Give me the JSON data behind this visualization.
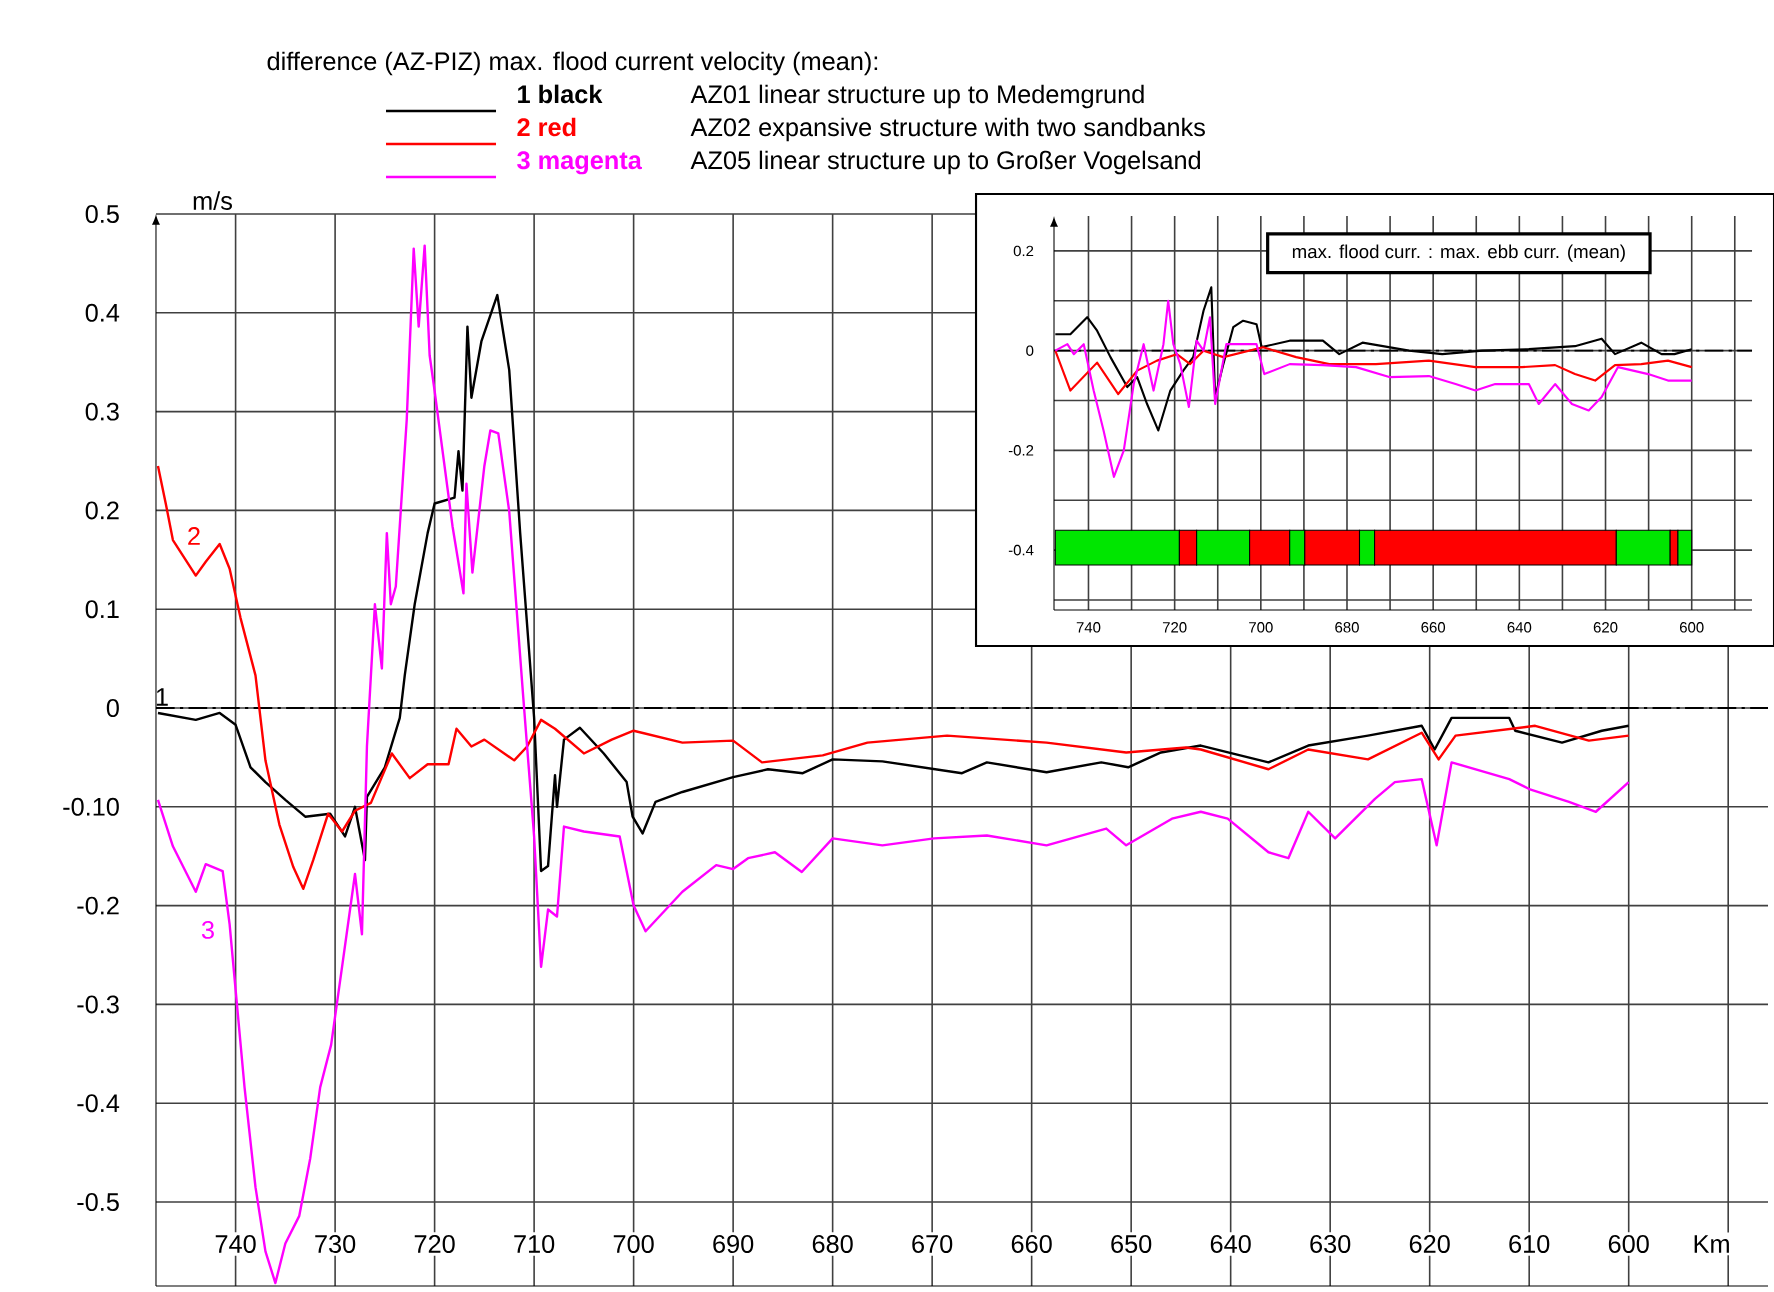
{
  "chart_data": [
    {
      "type": "line",
      "legend_title": "difference (AZ-PIZ) max. flood current velocity (mean):",
      "xlabel": "Km",
      "ylabel": "m/s",
      "xlim": [
        748,
        586
      ],
      "ylim": [
        -0.585,
        0.5
      ],
      "xticks": [
        740,
        730,
        720,
        710,
        700,
        690,
        680,
        670,
        660,
        650,
        640,
        630,
        620,
        610,
        600,
        {
          "value": 590,
          "label": null
        }
      ],
      "yticks": [
        0.5,
        0.4,
        0.3,
        0.2,
        0.1,
        0,
        {
          "value": -0.1,
          "label": "-0.10"
        },
        -0.2,
        -0.3,
        -0.4,
        -0.5
      ],
      "grid": true,
      "legend": "top",
      "ref_lines": [
        {
          "axis": "y",
          "value": 0,
          "line_style": "dashdot",
          "color": "#000000"
        }
      ],
      "annotations": [
        "1",
        "2",
        "3",
        "AZ01 linear structure up to Medemgrund",
        "AZ02 expansive structure with two sandbanks",
        "AZ05 linear structure up to Großer Vogelsand"
      ],
      "series": [
        {
          "name": "1 black",
          "color": "#000000",
          "x": [
            747.8,
            744,
            741.6,
            740,
            738.5,
            737,
            735,
            733,
            730.5,
            729,
            728,
            727,
            726.8,
            725,
            723.5,
            723,
            722,
            720.7,
            720,
            718,
            717.6,
            717.2,
            716.7,
            716.3,
            715.3,
            713.7,
            712.5,
            711.4,
            710,
            709.3,
            708.6,
            707.9,
            707.7,
            707,
            705.4,
            703,
            700.7,
            700.1,
            699.1,
            697.8,
            695.1,
            690,
            686.5,
            683,
            680,
            675,
            667,
            664.5,
            658.5,
            653,
            650.3,
            647,
            643,
            636.2,
            632.2,
            626.2,
            620.8,
            619.5,
            617.8,
            612,
            611.4,
            606.7,
            602.7,
            600
          ],
          "values": [
            -0.005,
            -0.012,
            -0.005,
            -0.017,
            -0.06,
            -0.075,
            -0.093,
            -0.11,
            -0.107,
            -0.13,
            -0.1,
            -0.154,
            -0.09,
            -0.06,
            -0.01,
            0.033,
            0.105,
            0.177,
            0.207,
            0.213,
            0.26,
            0.22,
            0.386,
            0.314,
            0.371,
            0.418,
            0.342,
            0.177,
            -0.01,
            -0.165,
            -0.16,
            -0.068,
            -0.1,
            -0.032,
            -0.02,
            -0.046,
            -0.075,
            -0.11,
            -0.127,
            -0.095,
            -0.085,
            -0.07,
            -0.062,
            -0.066,
            -0.052,
            -0.054,
            -0.066,
            -0.055,
            -0.065,
            -0.055,
            -0.06,
            -0.045,
            -0.038,
            -0.055,
            -0.038,
            -0.028,
            -0.018,
            -0.042,
            -0.01,
            -0.01,
            -0.023,
            -0.035,
            -0.023,
            -0.018
          ]
        },
        {
          "name": "2 red",
          "color": "#ff0000",
          "x": [
            747.8,
            747,
            746.3,
            744,
            743,
            741.6,
            740.6,
            739.5,
            738,
            737,
            735.6,
            734.2,
            733.2,
            732.2,
            730.7,
            729.3,
            728,
            726.4,
            724.3,
            722.5,
            720.7,
            718.6,
            717.8,
            716.3,
            715,
            712,
            710.7,
            709.3,
            707.9,
            705,
            702.2,
            700,
            695.1,
            690,
            687.1,
            681,
            676.5,
            668.5,
            658.5,
            650.5,
            644.5,
            643,
            636.2,
            632.2,
            626.2,
            620.8,
            619.1,
            617.4,
            609.4,
            604,
            600
          ],
          "values": [
            0.245,
            0.206,
            0.17,
            0.134,
            0.148,
            0.166,
            0.141,
            0.091,
            0.033,
            -0.053,
            -0.118,
            -0.161,
            -0.183,
            -0.154,
            -0.107,
            -0.125,
            -0.104,
            -0.096,
            -0.046,
            -0.071,
            -0.057,
            -0.057,
            -0.021,
            -0.039,
            -0.032,
            -0.053,
            -0.039,
            -0.012,
            -0.021,
            -0.046,
            -0.032,
            -0.023,
            -0.035,
            -0.033,
            -0.055,
            -0.048,
            -0.035,
            -0.028,
            -0.035,
            -0.045,
            -0.04,
            -0.042,
            -0.062,
            -0.042,
            -0.052,
            -0.025,
            -0.052,
            -0.028,
            -0.018,
            -0.033,
            -0.028
          ]
        },
        {
          "name": "3 magenta",
          "color": "#ff00ff",
          "x": [
            747.8,
            746.3,
            744,
            743,
            741.3,
            740.6,
            739.1,
            738,
            737,
            736,
            735,
            733.6,
            732.5,
            731.5,
            730.4,
            729.3,
            728,
            727.3,
            726.8,
            726,
            725.3,
            724.8,
            724.4,
            723.9,
            722.8,
            722.1,
            721.6,
            721,
            720.5,
            720,
            718.2,
            717.1,
            716.8,
            716.2,
            715,
            714.4,
            713.6,
            712.5,
            711.1,
            710,
            709.3,
            708.6,
            707.7,
            707,
            705,
            701.4,
            700,
            698.8,
            695.1,
            691.7,
            690,
            688.5,
            685.8,
            683.1,
            680,
            675,
            669.8,
            664.5,
            658.5,
            652.5,
            650.5,
            645.9,
            643,
            640.3,
            636.2,
            634.2,
            632.2,
            629.5,
            625.5,
            623.5,
            620.8,
            619.3,
            617.8,
            612,
            610,
            606,
            603.3,
            600
          ],
          "values": [
            -0.093,
            -0.14,
            -0.186,
            -0.158,
            -0.165,
            -0.219,
            -0.384,
            -0.485,
            -0.55,
            -0.582,
            -0.542,
            -0.514,
            -0.456,
            -0.384,
            -0.341,
            -0.262,
            -0.168,
            -0.229,
            -0.039,
            0.105,
            0.04,
            0.177,
            0.105,
            0.123,
            0.292,
            0.465,
            0.386,
            0.468,
            0.357,
            0.321,
            0.184,
            0.116,
            0.227,
            0.137,
            0.245,
            0.281,
            0.278,
            0.199,
            0.012,
            -0.13,
            -0.262,
            -0.204,
            -0.211,
            -0.12,
            -0.125,
            -0.13,
            -0.2,
            -0.226,
            -0.186,
            -0.159,
            -0.163,
            -0.152,
            -0.146,
            -0.166,
            -0.132,
            -0.139,
            -0.132,
            -0.129,
            -0.139,
            -0.122,
            -0.139,
            -0.112,
            -0.105,
            -0.112,
            -0.146,
            -0.152,
            -0.105,
            -0.132,
            -0.092,
            -0.075,
            -0.072,
            -0.139,
            -0.055,
            -0.072,
            -0.082,
            -0.095,
            -0.105,
            -0.075
          ]
        }
      ]
    },
    {
      "type": "line",
      "title": "max. flood curr. : max. ebb curr. (mean)",
      "xlim": [
        748,
        586
      ],
      "ylim": [
        -0.52,
        0.27
      ],
      "xticks": [
        740,
        {
          "value": 730,
          "label": null
        },
        720,
        {
          "value": 710,
          "label": null
        },
        700,
        {
          "value": 690,
          "label": null
        },
        680,
        {
          "value": 670,
          "label": null
        },
        660,
        {
          "value": 650,
          "label": null
        },
        640,
        {
          "value": 630,
          "label": null
        },
        620,
        {
          "value": 610,
          "label": null
        },
        600,
        {
          "value": 590,
          "label": null
        }
      ],
      "yticks": [
        0.2,
        {
          "value": 0.1,
          "label": null
        },
        0,
        {
          "value": -0.1,
          "label": null
        },
        -0.2,
        {
          "value": -0.3,
          "label": null
        },
        -0.4,
        {
          "value": -0.5,
          "label": null
        }
      ],
      "grid": true,
      "ref_lines": [
        {
          "axis": "y",
          "value": 0,
          "line_style": "dashdot",
          "color": "#000000"
        }
      ],
      "bands": [
        {
          "axis": "x",
          "from": 747.7,
          "to": 718.9,
          "color": "#00e600"
        },
        {
          "axis": "x",
          "from": 718.9,
          "to": 714.9,
          "color": "#ff0000"
        },
        {
          "axis": "x",
          "from": 714.9,
          "to": 702.6,
          "color": "#00e600"
        },
        {
          "axis": "x",
          "from": 702.6,
          "to": 693.3,
          "color": "#ff0000"
        },
        {
          "axis": "x",
          "from": 693.3,
          "to": 689.8,
          "color": "#00e600"
        },
        {
          "axis": "x",
          "from": 689.8,
          "to": 677.1,
          "color": "#ff0000"
        },
        {
          "axis": "x",
          "from": 677.1,
          "to": 673.6,
          "color": "#00e600"
        },
        {
          "axis": "x",
          "from": 673.6,
          "to": 617.5,
          "color": "#ff0000"
        },
        {
          "axis": "x",
          "from": 617.5,
          "to": 605,
          "color": "#00e600"
        },
        {
          "axis": "x",
          "from": 605,
          "to": 603.2,
          "color": "#ff0000"
        },
        {
          "axis": "x",
          "from": 603.2,
          "to": 600,
          "color": "#00e600"
        }
      ],
      "series": [
        {
          "color": "#000000",
          "x": [
            747.7,
            744.2,
            740.3,
            738,
            734.9,
            731,
            728.7,
            726.4,
            723.8,
            721,
            718,
            715.7,
            713.3,
            711.5,
            710.6,
            708.7,
            706.4,
            704.1,
            701,
            699.8,
            693.3,
            685.6,
            681.8,
            676.4,
            665.6,
            657.9,
            648.6,
            637.8,
            627.1,
            620.9,
            617.8,
            611.7,
            607,
            604,
            600
          ],
          "values": [
            0.033,
            0.033,
            0.067,
            0.04,
            -0.013,
            -0.073,
            -0.053,
            -0.107,
            -0.16,
            -0.08,
            -0.04,
            -0.013,
            0.08,
            0.127,
            -0.093,
            -0.027,
            0.047,
            0.06,
            0.053,
            0.007,
            0.02,
            0.02,
            -0.007,
            0.016,
            0,
            -0.007,
            0,
            0.003,
            0.009,
            0.024,
            -0.007,
            0.016,
            -0.007,
            -0.007,
            0.003
          ]
        },
        {
          "color": "#ff0000",
          "x": [
            747.7,
            744.2,
            738,
            733.1,
            728.7,
            724.1,
            719.5,
            716.4,
            713.3,
            708.7,
            704.1,
            699.5,
            691.8,
            684.1,
            673.3,
            661,
            650.2,
            639.4,
            631.7,
            627.1,
            622.4,
            617.8,
            611.7,
            605.5,
            600
          ],
          "values": [
            0,
            -0.08,
            -0.024,
            -0.087,
            -0.04,
            -0.02,
            -0.007,
            -0.027,
            0,
            -0.013,
            -0.003,
            0.007,
            -0.013,
            -0.027,
            -0.027,
            -0.02,
            -0.033,
            -0.033,
            -0.029,
            -0.047,
            -0.06,
            -0.029,
            -0.027,
            -0.02,
            -0.033
          ]
        },
        {
          "color": "#ff00ff",
          "x": [
            747.7,
            744.9,
            743.4,
            741.1,
            738.8,
            736.5,
            734.1,
            731.8,
            729.5,
            727.2,
            724.9,
            722.6,
            721.5,
            720.3,
            718.7,
            716.7,
            714.9,
            713.3,
            711.8,
            710.6,
            708,
            701,
            699.2,
            693.3,
            685.6,
            677.9,
            670.2,
            661,
            654.8,
            650.2,
            645.6,
            637.8,
            635.5,
            631.7,
            627.8,
            623.9,
            620.9,
            617.1,
            610.1,
            605.5,
            600
          ],
          "values": [
            0,
            0.013,
            -0.007,
            0.013,
            -0.08,
            -0.16,
            -0.253,
            -0.2,
            -0.067,
            0.013,
            -0.08,
            0.013,
            0.1,
            0.013,
            -0.027,
            -0.113,
            0.02,
            0,
            0.067,
            -0.107,
            0.013,
            0.013,
            -0.047,
            -0.027,
            -0.029,
            -0.033,
            -0.053,
            -0.051,
            -0.067,
            -0.08,
            -0.067,
            -0.067,
            -0.107,
            -0.067,
            -0.107,
            -0.12,
            -0.093,
            -0.033,
            -0.047,
            -0.06,
            -0.06
          ]
        }
      ]
    }
  ]
}
